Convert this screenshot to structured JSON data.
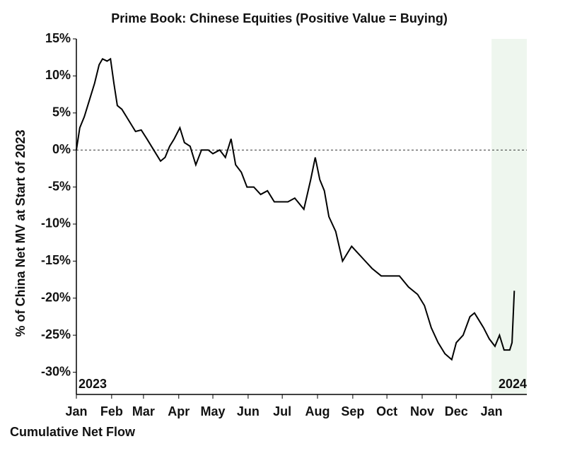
{
  "chart_data": {
    "type": "line",
    "title": "Prime Book: Chinese Equities (Positive Value = Buying)",
    "ylabel": "% of China Net MV at Start of 2023",
    "footer": "Cumulative Net Flow",
    "annotations": [
      "2023",
      "2024"
    ],
    "x": [
      0,
      3,
      7,
      12,
      16,
      20,
      23,
      27,
      30,
      33,
      36,
      40,
      44,
      48,
      52,
      57,
      62,
      66,
      70,
      74,
      78,
      82,
      86,
      91,
      95,
      100,
      105,
      110,
      116,
      120,
      126,
      131,
      136,
      140,
      145,
      150,
      156,
      162,
      168,
      174,
      180,
      186,
      192,
      200,
      206,
      210,
      214,
      218,
      222,
      228,
      234,
      238,
      242,
      248,
      254,
      260,
      268,
      276,
      284,
      292,
      300,
      306,
      312,
      318,
      324,
      330,
      334,
      340,
      346,
      350,
      354,
      358,
      363,
      368,
      372,
      376,
      381,
      383,
      385
    ],
    "series": [
      {
        "name": "Cumulative Net Flow",
        "color": "#000000",
        "values": [
          0,
          3,
          4.5,
          7,
          9,
          11.5,
          12.3,
          12,
          12.3,
          9,
          6,
          5.5,
          4.5,
          3.5,
          2.5,
          2.7,
          1.5,
          0.5,
          -0.5,
          -1.5,
          -1,
          0.5,
          1.5,
          3,
          1,
          0.5,
          -2,
          0,
          0,
          -0.5,
          0,
          -1,
          1.5,
          -2,
          -3,
          -5,
          -5,
          -6,
          -5.5,
          -7,
          -7,
          -7,
          -6.5,
          -8,
          -4,
          -1,
          -4,
          -5.5,
          -9,
          -11,
          -15,
          -14,
          -13,
          -14,
          -15,
          -16,
          -17,
          -17,
          -17,
          -18.5,
          -19.5,
          -21,
          -24,
          -26,
          -27.5,
          -28.3,
          -26,
          -25,
          -22.5,
          -22,
          -23,
          -24,
          -25.5,
          -26.5,
          -25,
          -27,
          -27,
          -26,
          -19
        ]
      }
    ],
    "xlim": [
      0,
      396
    ],
    "xticks": [
      {
        "value": 0,
        "label": "Jan"
      },
      {
        "value": 31,
        "label": "Feb"
      },
      {
        "value": 59,
        "label": "Mar"
      },
      {
        "value": 90,
        "label": "Apr"
      },
      {
        "value": 120,
        "label": "May"
      },
      {
        "value": 151,
        "label": "Jun"
      },
      {
        "value": 181,
        "label": "Jul"
      },
      {
        "value": 212,
        "label": "Aug"
      },
      {
        "value": 243,
        "label": "Sep"
      },
      {
        "value": 273,
        "label": "Oct"
      },
      {
        "value": 304,
        "label": "Nov"
      },
      {
        "value": 334,
        "label": "Dec"
      },
      {
        "value": 365,
        "label": "Jan"
      }
    ],
    "ylim": [
      -33,
      15
    ],
    "yticks": [
      {
        "value": 15,
        "label": "15%"
      },
      {
        "value": 10,
        "label": "10%"
      },
      {
        "value": 5,
        "label": "5%"
      },
      {
        "value": 0,
        "label": "0%"
      },
      {
        "value": -5,
        "label": "-5%"
      },
      {
        "value": -10,
        "label": "-10%"
      },
      {
        "value": -15,
        "label": "-15%"
      },
      {
        "value": -20,
        "label": "-20%"
      },
      {
        "value": -25,
        "label": "-25%"
      },
      {
        "value": -30,
        "label": "-30%"
      }
    ],
    "shaded_region": {
      "x": [
        365,
        396
      ],
      "color": "#eef6ee"
    },
    "zero_line": true
  }
}
